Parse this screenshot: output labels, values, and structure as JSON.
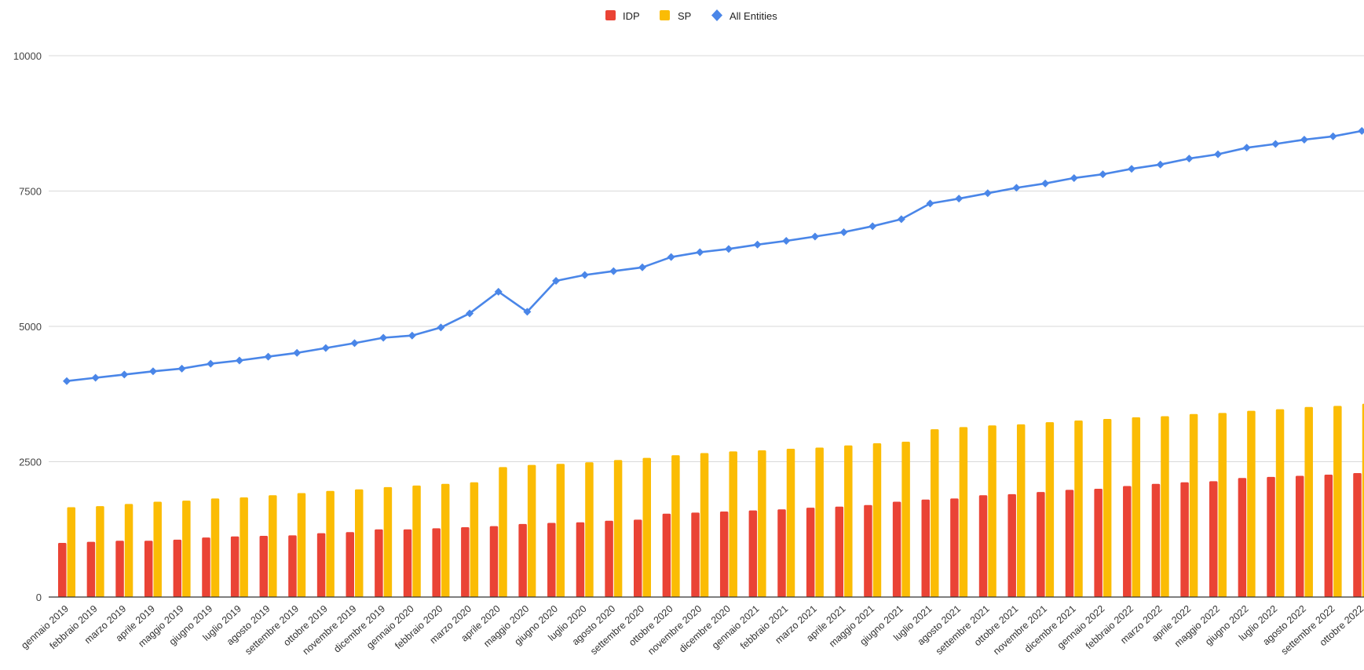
{
  "chart_data": {
    "type": "bar",
    "title": "",
    "xlabel": "",
    "ylabel": "",
    "ylim": [
      0,
      10000
    ],
    "yticks": [
      0,
      2500,
      5000,
      7500,
      10000
    ],
    "grid": true,
    "legend_position": "top-center",
    "categories": [
      "gennaio 2019",
      "febbraio 2019",
      "marzo 2019",
      "aprile 2019",
      "maggio 2019",
      "giugno 2019",
      "luglio 2019",
      "agosto 2019",
      "settembre 2019",
      "ottobre 2019",
      "novembre 2019",
      "dicembre 2019",
      "gennaio 2020",
      "febbraio 2020",
      "marzo 2020",
      "aprile 2020",
      "maggio 2020",
      "giugno 2020",
      "luglio 2020",
      "agosto 2020",
      "settembre 2020",
      "ottobre 2020",
      "novembre 2020",
      "dicembre 2020",
      "gennaio 2021",
      "febbraio 2021",
      "marzo 2021",
      "aprile 2021",
      "maggio 2021",
      "giugno 2021",
      "luglio 2021",
      "agosto 2021",
      "settembre 2021",
      "ottobre 2021",
      "novembre 2021",
      "dicembre 2021",
      "gennaio 2022",
      "febbraio 2022",
      "marzo 2022",
      "aprile 2022",
      "maggio 2022",
      "giugno 2022",
      "luglio 2022",
      "agosto 2022",
      "settembre 2022",
      "ottobre 2022"
    ],
    "series": [
      {
        "name": "IDP",
        "kind": "bar",
        "color": "#ea4335",
        "values": [
          1000,
          1020,
          1040,
          1040,
          1060,
          1100,
          1120,
          1130,
          1140,
          1180,
          1200,
          1250,
          1250,
          1270,
          1290,
          1310,
          1350,
          1370,
          1380,
          1410,
          1430,
          1540,
          1560,
          1580,
          1600,
          1620,
          1650,
          1670,
          1700,
          1760,
          1800,
          1820,
          1880,
          1900,
          1940,
          1980,
          2000,
          2050,
          2090,
          2120,
          2140,
          2200,
          2220,
          2240,
          2260,
          2290
        ]
      },
      {
        "name": "SP",
        "kind": "bar",
        "color": "#fbbc04",
        "values": [
          1660,
          1680,
          1720,
          1760,
          1780,
          1820,
          1840,
          1880,
          1920,
          1960,
          1990,
          2030,
          2060,
          2090,
          2120,
          2400,
          2440,
          2460,
          2490,
          2530,
          2570,
          2620,
          2660,
          2690,
          2710,
          2740,
          2760,
          2800,
          2840,
          2870,
          3100,
          3140,
          3170,
          3190,
          3230,
          3260,
          3290,
          3320,
          3340,
          3380,
          3400,
          3440,
          3470,
          3510,
          3530,
          3570
        ]
      },
      {
        "name": "All Entities",
        "kind": "line",
        "color": "#4a86e8",
        "values": [
          3990,
          4050,
          4110,
          4170,
          4220,
          4310,
          4370,
          4440,
          4510,
          4600,
          4690,
          4790,
          4830,
          4980,
          5240,
          5640,
          5270,
          5840,
          5950,
          6020,
          6090,
          6280,
          6370,
          6430,
          6510,
          6580,
          6660,
          6740,
          6850,
          6980,
          7270,
          7360,
          7460,
          7560,
          7640,
          7740,
          7810,
          7910,
          7990,
          8100,
          8180,
          8300,
          8370,
          8450,
          8510,
          8610
        ]
      }
    ]
  }
}
